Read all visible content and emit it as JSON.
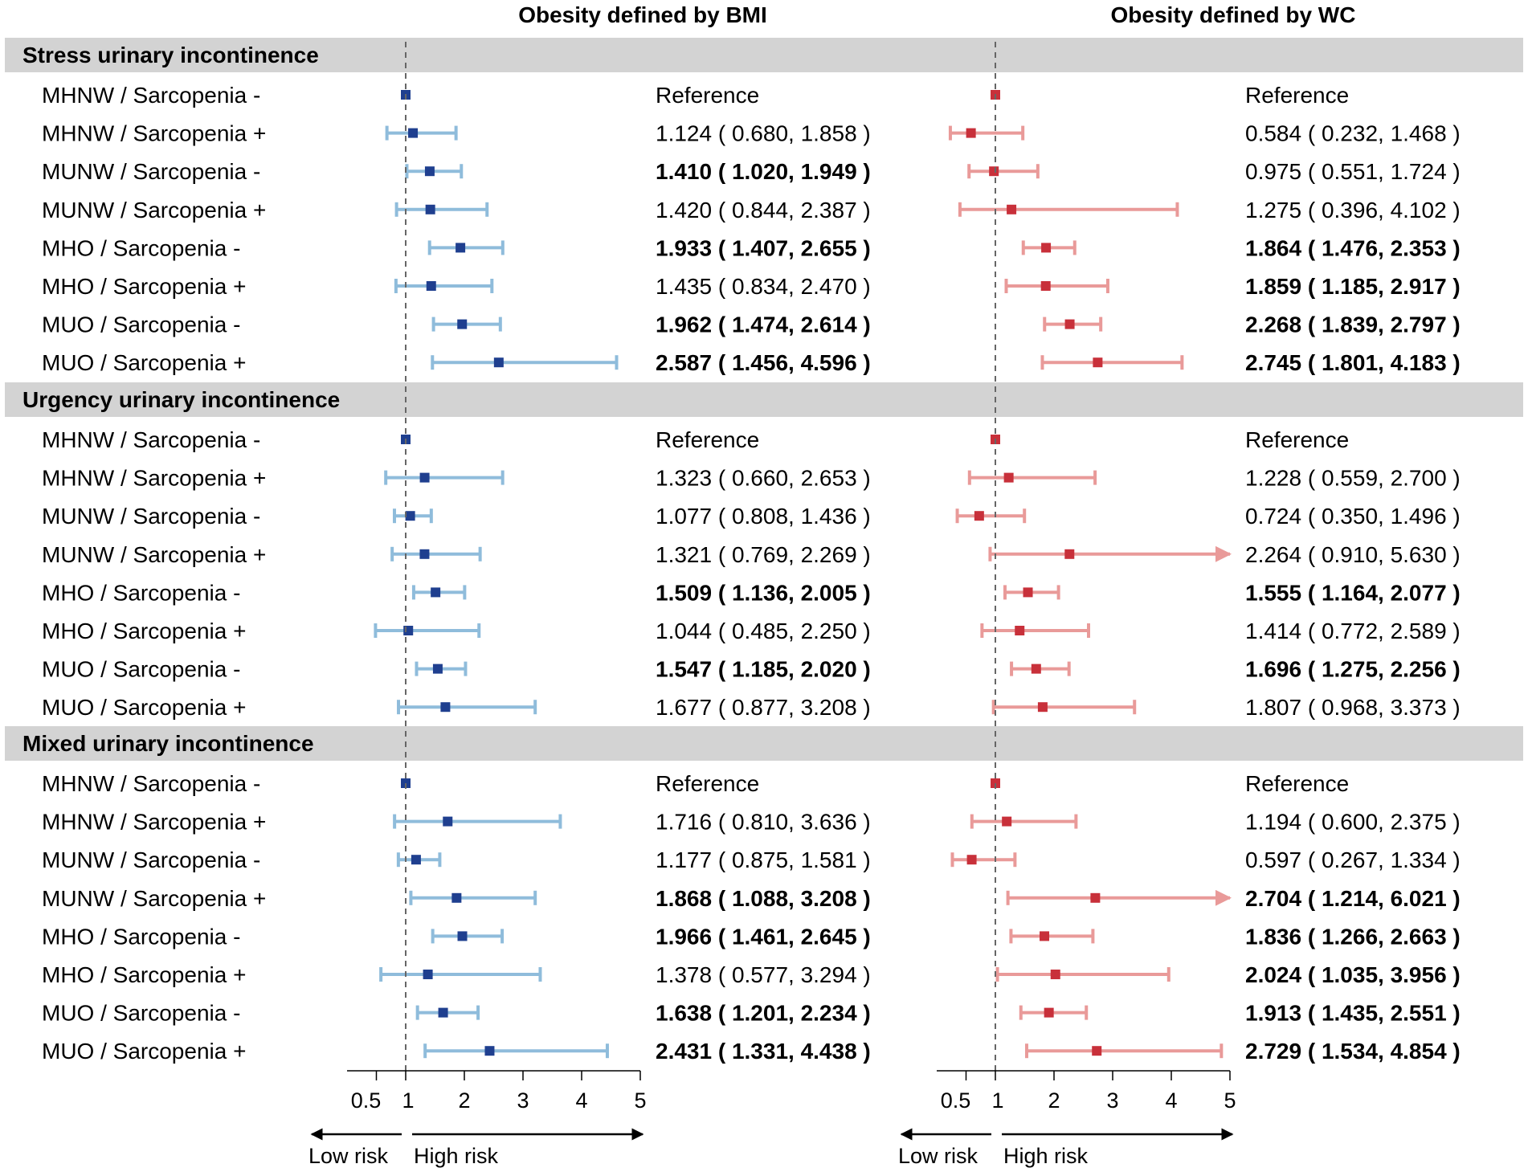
{
  "chart_data": {
    "type": "forest",
    "panels": [
      {
        "title": "Obesity defined by BMI",
        "reference_line": 1,
        "xlim": [
          0,
          5
        ],
        "ticks": [
          "0.5",
          "1",
          "2",
          "3",
          "4",
          "5"
        ],
        "low_risk_label": "Low risk",
        "high_risk_label": "High risk",
        "marker_color": "#1f3f8f",
        "ci_color": "#8fbcdb"
      },
      {
        "title": "Obesity defined by WC",
        "reference_line": 1,
        "xlim": [
          0,
          5
        ],
        "ticks": [
          "0.5",
          "1",
          "2",
          "3",
          "4",
          "5"
        ],
        "low_risk_label": "Low risk",
        "high_risk_label": "High risk",
        "marker_color": "#c8303a",
        "ci_color": "#e99a99"
      }
    ],
    "groups": [
      {
        "name": "Stress urinary incontinence",
        "rows": [
          {
            "label": "MHNW / Sarcopenia -",
            "bmi": {
              "text": "Reference",
              "or": 1,
              "lo": 1,
              "hi": 1,
              "sig": false,
              "ref": true
            },
            "wc": {
              "text": "Reference",
              "or": 1,
              "lo": 1,
              "hi": 1,
              "sig": false,
              "ref": true
            }
          },
          {
            "label": "MHNW / Sarcopenia +",
            "bmi": {
              "text": "1.124 ( 0.680, 1.858 )",
              "or": 1.124,
              "lo": 0.68,
              "hi": 1.858,
              "sig": false
            },
            "wc": {
              "text": "0.584 ( 0.232, 1.468 )",
              "or": 0.584,
              "lo": 0.232,
              "hi": 1.468,
              "sig": false
            }
          },
          {
            "label": "MUNW / Sarcopenia -",
            "bmi": {
              "text": "1.410 ( 1.020, 1.949 )",
              "or": 1.41,
              "lo": 1.02,
              "hi": 1.949,
              "sig": true
            },
            "wc": {
              "text": "0.975 ( 0.551, 1.724 )",
              "or": 0.975,
              "lo": 0.551,
              "hi": 1.724,
              "sig": false
            }
          },
          {
            "label": "MUNW / Sarcopenia +",
            "bmi": {
              "text": "1.420 ( 0.844, 2.387 )",
              "or": 1.42,
              "lo": 0.844,
              "hi": 2.387,
              "sig": false
            },
            "wc": {
              "text": "1.275 ( 0.396, 4.102 )",
              "or": 1.275,
              "lo": 0.396,
              "hi": 4.102,
              "sig": false
            }
          },
          {
            "label": "MHO / Sarcopenia -",
            "bmi": {
              "text": "1.933 ( 1.407, 2.655 )",
              "or": 1.933,
              "lo": 1.407,
              "hi": 2.655,
              "sig": true
            },
            "wc": {
              "text": "1.864 ( 1.476, 2.353 )",
              "or": 1.864,
              "lo": 1.476,
              "hi": 2.353,
              "sig": true
            }
          },
          {
            "label": "MHO / Sarcopenia +",
            "bmi": {
              "text": "1.435 ( 0.834, 2.470 )",
              "or": 1.435,
              "lo": 0.834,
              "hi": 2.47,
              "sig": false
            },
            "wc": {
              "text": "1.859 ( 1.185, 2.917 )",
              "or": 1.859,
              "lo": 1.185,
              "hi": 2.917,
              "sig": true
            }
          },
          {
            "label": "MUO / Sarcopenia -",
            "bmi": {
              "text": "1.962 ( 1.474, 2.614 )",
              "or": 1.962,
              "lo": 1.474,
              "hi": 2.614,
              "sig": true
            },
            "wc": {
              "text": "2.268 ( 1.839, 2.797 )",
              "or": 2.268,
              "lo": 1.839,
              "hi": 2.797,
              "sig": true
            }
          },
          {
            "label": "MUO / Sarcopenia +",
            "bmi": {
              "text": "2.587 ( 1.456, 4.596 )",
              "or": 2.587,
              "lo": 1.456,
              "hi": 4.596,
              "sig": true
            },
            "wc": {
              "text": "2.745 ( 1.801, 4.183 )",
              "or": 2.745,
              "lo": 1.801,
              "hi": 4.183,
              "sig": true
            }
          }
        ]
      },
      {
        "name": "Urgency urinary incontinence",
        "rows": [
          {
            "label": "MHNW / Sarcopenia -",
            "bmi": {
              "text": "Reference",
              "or": 1,
              "lo": 1,
              "hi": 1,
              "sig": false,
              "ref": true
            },
            "wc": {
              "text": "Reference",
              "or": 1,
              "lo": 1,
              "hi": 1,
              "sig": false,
              "ref": true
            }
          },
          {
            "label": "MHNW / Sarcopenia +",
            "bmi": {
              "text": "1.323 ( 0.660, 2.653 )",
              "or": 1.323,
              "lo": 0.66,
              "hi": 2.653,
              "sig": false
            },
            "wc": {
              "text": "1.228 ( 0.559, 2.700 )",
              "or": 1.228,
              "lo": 0.559,
              "hi": 2.7,
              "sig": false
            }
          },
          {
            "label": "MUNW / Sarcopenia -",
            "bmi": {
              "text": "1.077 ( 0.808, 1.436 )",
              "or": 1.077,
              "lo": 0.808,
              "hi": 1.436,
              "sig": false
            },
            "wc": {
              "text": "0.724 ( 0.350, 1.496 )",
              "or": 0.724,
              "lo": 0.35,
              "hi": 1.496,
              "sig": false
            }
          },
          {
            "label": "MUNW / Sarcopenia +",
            "bmi": {
              "text": "1.321 ( 0.769, 2.269 )",
              "or": 1.321,
              "lo": 0.769,
              "hi": 2.269,
              "sig": false
            },
            "wc": {
              "text": "2.264 ( 0.910, 5.630 )",
              "or": 2.264,
              "lo": 0.91,
              "hi": 5.63,
              "sig": false
            }
          },
          {
            "label": "MHO / Sarcopenia -",
            "bmi": {
              "text": "1.509 ( 1.136, 2.005 )",
              "or": 1.509,
              "lo": 1.136,
              "hi": 2.005,
              "sig": true
            },
            "wc": {
              "text": "1.555 ( 1.164, 2.077 )",
              "or": 1.555,
              "lo": 1.164,
              "hi": 2.077,
              "sig": true
            }
          },
          {
            "label": "MHO / Sarcopenia +",
            "bmi": {
              "text": "1.044 ( 0.485, 2.250 )",
              "or": 1.044,
              "lo": 0.485,
              "hi": 2.25,
              "sig": false
            },
            "wc": {
              "text": "1.414 ( 0.772, 2.589 )",
              "or": 1.414,
              "lo": 0.772,
              "hi": 2.589,
              "sig": false
            }
          },
          {
            "label": "MUO / Sarcopenia -",
            "bmi": {
              "text": "1.547 ( 1.185, 2.020 )",
              "or": 1.547,
              "lo": 1.185,
              "hi": 2.02,
              "sig": true
            },
            "wc": {
              "text": "1.696 ( 1.275, 2.256 )",
              "or": 1.696,
              "lo": 1.275,
              "hi": 2.256,
              "sig": true
            }
          },
          {
            "label": "MUO / Sarcopenia +",
            "bmi": {
              "text": "1.677 ( 0.877, 3.208 )",
              "or": 1.677,
              "lo": 0.877,
              "hi": 3.208,
              "sig": false
            },
            "wc": {
              "text": "1.807 ( 0.968, 3.373 )",
              "or": 1.807,
              "lo": 0.968,
              "hi": 3.373,
              "sig": false
            }
          }
        ]
      },
      {
        "name": "Mixed urinary incontinence",
        "rows": [
          {
            "label": "MHNW / Sarcopenia -",
            "bmi": {
              "text": "Reference",
              "or": 1,
              "lo": 1,
              "hi": 1,
              "sig": false,
              "ref": true
            },
            "wc": {
              "text": "Reference",
              "or": 1,
              "lo": 1,
              "hi": 1,
              "sig": false,
              "ref": true
            }
          },
          {
            "label": "MHNW / Sarcopenia +",
            "bmi": {
              "text": "1.716 ( 0.810, 3.636 )",
              "or": 1.716,
              "lo": 0.81,
              "hi": 3.636,
              "sig": false
            },
            "wc": {
              "text": "1.194 ( 0.600, 2.375 )",
              "or": 1.194,
              "lo": 0.6,
              "hi": 2.375,
              "sig": false
            }
          },
          {
            "label": "MUNW / Sarcopenia -",
            "bmi": {
              "text": "1.177 ( 0.875, 1.581 )",
              "or": 1.177,
              "lo": 0.875,
              "hi": 1.581,
              "sig": false
            },
            "wc": {
              "text": "0.597 ( 0.267, 1.334 )",
              "or": 0.597,
              "lo": 0.267,
              "hi": 1.334,
              "sig": false
            }
          },
          {
            "label": "MUNW / Sarcopenia +",
            "bmi": {
              "text": "1.868 ( 1.088, 3.208 )",
              "or": 1.868,
              "lo": 1.088,
              "hi": 3.208,
              "sig": true
            },
            "wc": {
              "text": "2.704 ( 1.214, 6.021 )",
              "or": 2.704,
              "lo": 1.214,
              "hi": 6.021,
              "sig": true
            }
          },
          {
            "label": "MHO / Sarcopenia -",
            "bmi": {
              "text": "1.966 ( 1.461, 2.645 )",
              "or": 1.966,
              "lo": 1.461,
              "hi": 2.645,
              "sig": true
            },
            "wc": {
              "text": "1.836 ( 1.266, 2.663 )",
              "or": 1.836,
              "lo": 1.266,
              "hi": 2.663,
              "sig": true
            }
          },
          {
            "label": "MHO / Sarcopenia +",
            "bmi": {
              "text": "1.378 ( 0.577, 3.294 )",
              "or": 1.378,
              "lo": 0.577,
              "hi": 3.294,
              "sig": false
            },
            "wc": {
              "text": "2.024 ( 1.035, 3.956 )",
              "or": 2.024,
              "lo": 1.035,
              "hi": 3.956,
              "sig": true
            }
          },
          {
            "label": "MUO / Sarcopenia -",
            "bmi": {
              "text": "1.638 ( 1.201, 2.234 )",
              "or": 1.638,
              "lo": 1.201,
              "hi": 2.234,
              "sig": true
            },
            "wc": {
              "text": "1.913 ( 1.435, 2.551 )",
              "or": 1.913,
              "lo": 1.435,
              "hi": 2.551,
              "sig": true
            }
          },
          {
            "label": "MUO / Sarcopenia +",
            "bmi": {
              "text": "2.431 ( 1.331, 4.438 )",
              "or": 2.431,
              "lo": 1.331,
              "hi": 4.438,
              "sig": true
            },
            "wc": {
              "text": "2.729 ( 1.534, 4.854 )",
              "or": 2.729,
              "lo": 1.534,
              "hi": 4.854,
              "sig": true
            }
          }
        ]
      }
    ]
  }
}
